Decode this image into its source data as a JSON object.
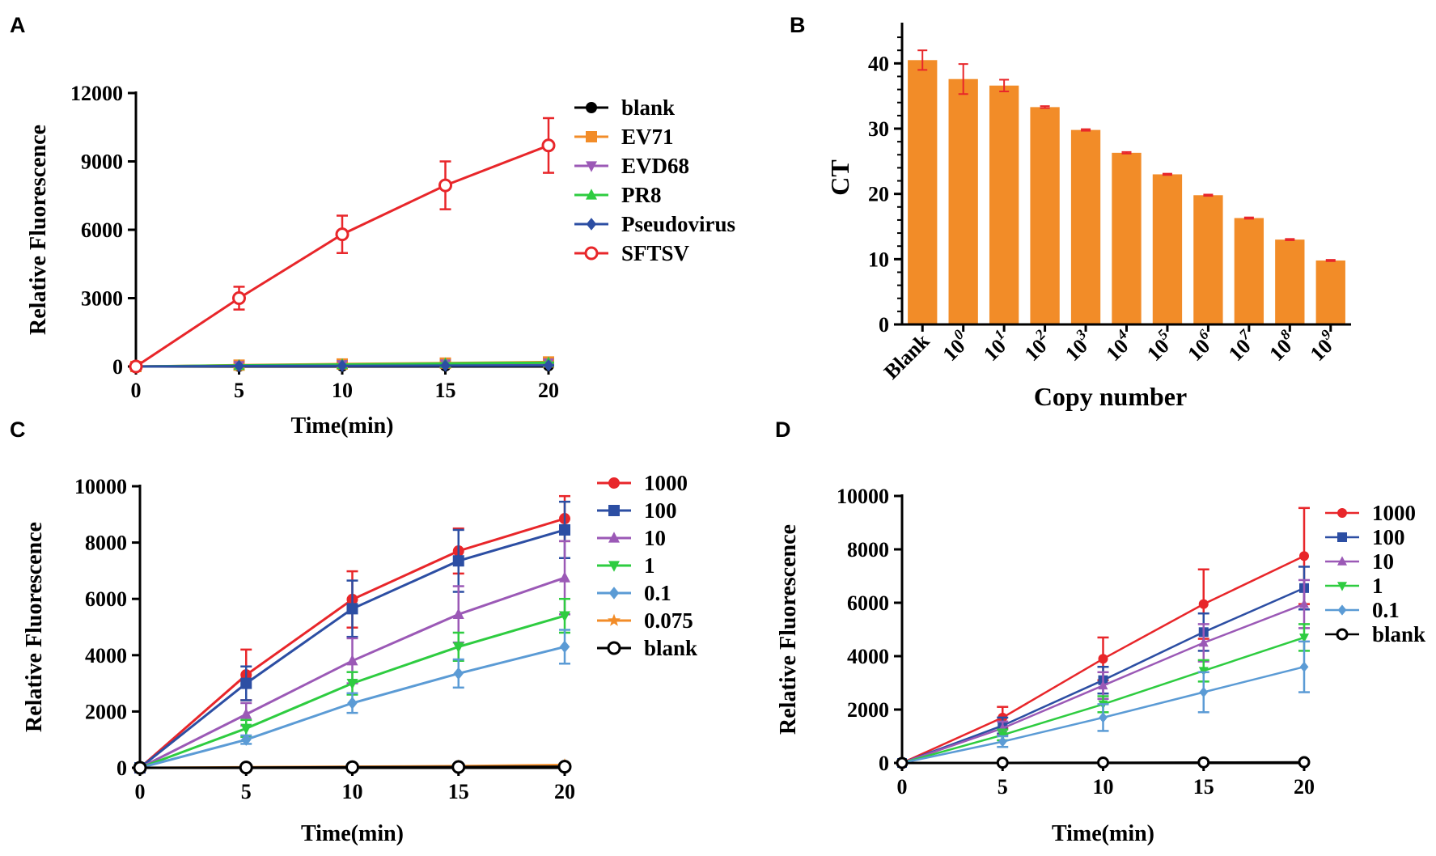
{
  "chart_data": [
    {
      "panel": "A",
      "type": "line",
      "xlabel": "Time(min)",
      "ylabel": "Relative Fluorescence",
      "x": [
        0,
        5,
        10,
        15,
        20
      ],
      "xticks": [
        "0",
        "5",
        "10",
        "15",
        "20"
      ],
      "yticks": [
        "0",
        "3000",
        "6000",
        "9000",
        "12000"
      ],
      "xlim": [
        0,
        20
      ],
      "ylim": [
        0,
        12000
      ],
      "series": [
        {
          "name": "blank",
          "color": "#000000",
          "marker": "circle",
          "values": [
            0,
            10,
            20,
            30,
            40
          ],
          "errors": [
            0,
            0,
            0,
            0,
            0
          ]
        },
        {
          "name": "EV71",
          "color": "#f28c28",
          "marker": "square",
          "values": [
            0,
            60,
            110,
            150,
            200
          ],
          "errors": [
            0,
            10,
            10,
            15,
            20
          ]
        },
        {
          "name": "EVD68",
          "color": "#9b59b6",
          "marker": "triangle-down",
          "values": [
            0,
            40,
            80,
            110,
            150
          ],
          "errors": [
            0,
            5,
            5,
            5,
            5
          ]
        },
        {
          "name": "PR8",
          "color": "#2ecc40",
          "marker": "triangle-up",
          "values": [
            0,
            50,
            90,
            130,
            170
          ],
          "errors": [
            0,
            5,
            5,
            5,
            5
          ]
        },
        {
          "name": "Pseudovirus",
          "color": "#2c4ea3",
          "marker": "diamond",
          "values": [
            0,
            20,
            30,
            40,
            50
          ],
          "errors": [
            0,
            5,
            5,
            5,
            5
          ]
        },
        {
          "name": "SFTSV",
          "color": "#e8262a",
          "marker": "circle-open",
          "values": [
            0,
            3000,
            5800,
            7950,
            9700
          ],
          "errors": [
            0,
            500,
            820,
            1050,
            1200
          ]
        }
      ]
    },
    {
      "panel": "B",
      "type": "bar",
      "xlabel": "Copy number",
      "ylabel": "CT",
      "categories": [
        {
          "base": "Blank",
          "exp": ""
        },
        {
          "base": "10",
          "exp": "0"
        },
        {
          "base": "10",
          "exp": "1"
        },
        {
          "base": "10",
          "exp": "2"
        },
        {
          "base": "10",
          "exp": "3"
        },
        {
          "base": "10",
          "exp": "4"
        },
        {
          "base": "10",
          "exp": "5"
        },
        {
          "base": "10",
          "exp": "6"
        },
        {
          "base": "10",
          "exp": "7"
        },
        {
          "base": "10",
          "exp": "8"
        },
        {
          "base": "10",
          "exp": "9"
        }
      ],
      "values": [
        40.5,
        37.6,
        36.6,
        33.3,
        29.8,
        26.3,
        23.0,
        19.8,
        16.3,
        13.0,
        9.8
      ],
      "errors": [
        1.5,
        2.3,
        0.9,
        0.15,
        0.12,
        0.12,
        0.1,
        0.1,
        0.1,
        0.1,
        0.1
      ],
      "yticks": [
        "0",
        "10",
        "20",
        "30",
        "40"
      ],
      "ylim": [
        0,
        45
      ],
      "bar_color": "#f28c28",
      "error_color": "#e8262a"
    },
    {
      "panel": "C",
      "type": "line",
      "xlabel": "Time(min)",
      "ylabel": "Relative Fluorescence",
      "x": [
        0,
        5,
        10,
        15,
        20
      ],
      "xticks": [
        "0",
        "5",
        "10",
        "15",
        "20"
      ],
      "yticks": [
        "0",
        "2000",
        "4000",
        "6000",
        "8000",
        "10000"
      ],
      "xlim": [
        0,
        20
      ],
      "ylim": [
        0,
        10000
      ],
      "series": [
        {
          "name": "1000",
          "color": "#e8262a",
          "marker": "circle",
          "values": [
            0,
            3300,
            5980,
            7700,
            8850
          ],
          "errors": [
            0,
            900,
            1000,
            800,
            800
          ]
        },
        {
          "name": "100",
          "color": "#2c4ea3",
          "marker": "square",
          "values": [
            0,
            3000,
            5650,
            7350,
            8450
          ],
          "errors": [
            0,
            600,
            1000,
            1100,
            1000
          ]
        },
        {
          "name": "10",
          "color": "#9b59b6",
          "marker": "triangle-up",
          "values": [
            0,
            1900,
            3800,
            5450,
            6750
          ],
          "errors": [
            0,
            400,
            800,
            1000,
            1300
          ]
        },
        {
          "name": "1",
          "color": "#2ecc40",
          "marker": "triangle-down",
          "values": [
            0,
            1400,
            3000,
            4300,
            5400
          ],
          "errors": [
            0,
            300,
            400,
            500,
            600
          ]
        },
        {
          "name": "0.1",
          "color": "#5b9bd5",
          "marker": "diamond",
          "values": [
            0,
            1000,
            2300,
            3350,
            4300
          ],
          "errors": [
            0,
            150,
            350,
            500,
            600
          ]
        },
        {
          "name": "0.075",
          "color": "#f28c28",
          "marker": "star",
          "values": [
            0,
            20,
            40,
            60,
            100
          ],
          "errors": [
            0,
            5,
            5,
            5,
            5
          ]
        },
        {
          "name": "blank",
          "color": "#000000",
          "marker": "circle-open",
          "values": [
            0,
            10,
            20,
            30,
            40
          ],
          "errors": [
            0,
            0,
            0,
            0,
            0
          ]
        }
      ]
    },
    {
      "panel": "D",
      "type": "line",
      "xlabel": "Time(min)",
      "ylabel": "Relative Fluorescence",
      "x": [
        0,
        5,
        10,
        15,
        20
      ],
      "xticks": [
        "0",
        "5",
        "10",
        "15",
        "20"
      ],
      "yticks": [
        "0",
        "2000",
        "4000",
        "6000",
        "8000",
        "10000"
      ],
      "xlim": [
        0,
        20
      ],
      "ylim": [
        0,
        10000
      ],
      "series": [
        {
          "name": "1000",
          "color": "#e8262a",
          "marker": "circle",
          "values": [
            0,
            1700,
            3900,
            5950,
            7750
          ],
          "errors": [
            0,
            400,
            800,
            1300,
            1800
          ]
        },
        {
          "name": "100",
          "color": "#2c4ea3",
          "marker": "square",
          "values": [
            0,
            1400,
            3100,
            4900,
            6550
          ],
          "errors": [
            0,
            300,
            500,
            700,
            800
          ]
        },
        {
          "name": "10",
          "color": "#9b59b6",
          "marker": "triangle-up",
          "values": [
            0,
            1300,
            2900,
            4500,
            5950
          ],
          "errors": [
            0,
            250,
            500,
            700,
            900
          ]
        },
        {
          "name": "1",
          "color": "#2ecc40",
          "marker": "triangle-down",
          "values": [
            0,
            1050,
            2200,
            3450,
            4700
          ],
          "errors": [
            0,
            200,
            300,
            400,
            500
          ]
        },
        {
          "name": "0.1",
          "color": "#5b9bd5",
          "marker": "diamond",
          "values": [
            0,
            800,
            1700,
            2650,
            3600
          ],
          "errors": [
            0,
            200,
            500,
            750,
            950
          ]
        },
        {
          "name": "blank",
          "color": "#000000",
          "marker": "circle-open",
          "values": [
            0,
            10,
            15,
            20,
            30
          ],
          "errors": [
            0,
            0,
            0,
            0,
            0
          ]
        }
      ]
    }
  ],
  "panel_labels": [
    "A",
    "B",
    "C",
    "D"
  ]
}
